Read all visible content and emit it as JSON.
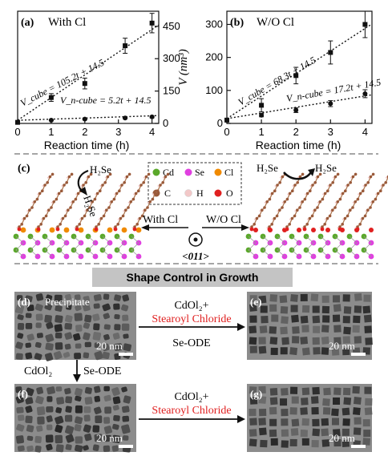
{
  "panels": {
    "a": {
      "label": "(a)",
      "title": "With Cl"
    },
    "b": {
      "label": "(b)",
      "title": "W/O Cl"
    },
    "c": {
      "label": "(c)"
    },
    "d": {
      "label": "(d)",
      "note": "Precipitate",
      "scale": "20 nm"
    },
    "e": {
      "label": "(e)",
      "scale": "20 nm"
    },
    "f": {
      "label": "(f)",
      "scale": "20 nm"
    },
    "g": {
      "label": "(g)",
      "scale": "20 nm"
    }
  },
  "axes": {
    "xlabel": "Reaction time (h)",
    "ylabel": "V (nm³)",
    "a_ticks_y": [
      "0",
      "150",
      "300",
      "450"
    ],
    "b_ticks_y": [
      "0",
      "100",
      "200",
      "300"
    ],
    "ticks_x": [
      "0",
      "1",
      "2",
      "3",
      "4"
    ]
  },
  "chart_data": [
    {
      "type": "scatter",
      "title": "With Cl",
      "xlabel": "Reaction time (h)",
      "ylabel": "V (nm³)",
      "xlim": [
        0,
        4.2
      ],
      "ylim": [
        0,
        520
      ],
      "series": [
        {
          "name": "V_cube = 105.2t + 14.5",
          "x": [
            0,
            1,
            2,
            3.2,
            4
          ],
          "y": [
            5,
            120,
            185,
            360,
            465
          ],
          "err": [
            0,
            18,
            25,
            35,
            45
          ],
          "fit": [
            105.2,
            14.5
          ]
        },
        {
          "name": "V_n-cube = 5.2t + 14.5",
          "x": [
            0,
            1,
            2,
            3.2,
            4
          ],
          "y": [
            5,
            15,
            20,
            25,
            30
          ],
          "err": [
            0,
            3,
            3,
            3,
            4
          ],
          "fit": [
            5.2,
            14.5
          ]
        }
      ]
    },
    {
      "type": "scatter",
      "title": "W/O Cl",
      "xlabel": "Reaction time (h)",
      "ylabel": "V (nm³)",
      "xlim": [
        0,
        4.2
      ],
      "ylim": [
        0,
        340
      ],
      "series": [
        {
          "name": "V_cube = 68.3t + 14.5",
          "x": [
            0,
            1,
            2,
            3,
            4
          ],
          "y": [
            10,
            55,
            145,
            215,
            300
          ],
          "err": [
            0,
            20,
            25,
            35,
            40
          ],
          "fit": [
            68.3,
            14.5
          ]
        },
        {
          "name": "V_n-cube = 17.2t + 14.5",
          "x": [
            0,
            1,
            2,
            3,
            4
          ],
          "y": [
            10,
            25,
            40,
            60,
            90
          ],
          "err": [
            0,
            5,
            7,
            9,
            12
          ],
          "fit": [
            17.2,
            14.5
          ]
        }
      ]
    }
  ],
  "equations": {
    "a_cube": "V_cube = 105.2t + 14.5",
    "a_ncube": "V_n-cube = 5.2t + 14.5",
    "b_cube": "V_cube = 68.3t + 14.5",
    "b_ncube": "V_n-cube = 17.2t + 14.5"
  },
  "legend": {
    "cd": "Cd",
    "se": "Se",
    "cl": "Cl",
    "c": "C",
    "h": "H",
    "o": "O"
  },
  "colors": {
    "cd": "#5aa82a",
    "se": "#e040e0",
    "cl": "#f08a00",
    "c": "#9a5a3a",
    "h": "#f2c8c8",
    "o": "#e02020",
    "red_text": "#e02020"
  },
  "scheme": {
    "h2se_left_top": "H₂Se",
    "h2se_left_side": "H₂Se",
    "h2se_right_a": "H₂Se",
    "h2se_right_b": "H₂Se",
    "with_cl": "With Cl",
    "wo_cl": "W/O Cl",
    "axis": "<011>"
  },
  "growth": {
    "banner": "Shape Control in Growth",
    "arrow_top_line1": "CdOl₂+",
    "arrow_top_line2": "Stearoyl Chloride",
    "arrow_top_line3": "Se-ODE",
    "down_left": "CdOl₂",
    "down_right": "Se-ODE",
    "arrow_bot_line1": "CdOl₂+",
    "arrow_bot_line2": "Stearoyl Chloride"
  }
}
